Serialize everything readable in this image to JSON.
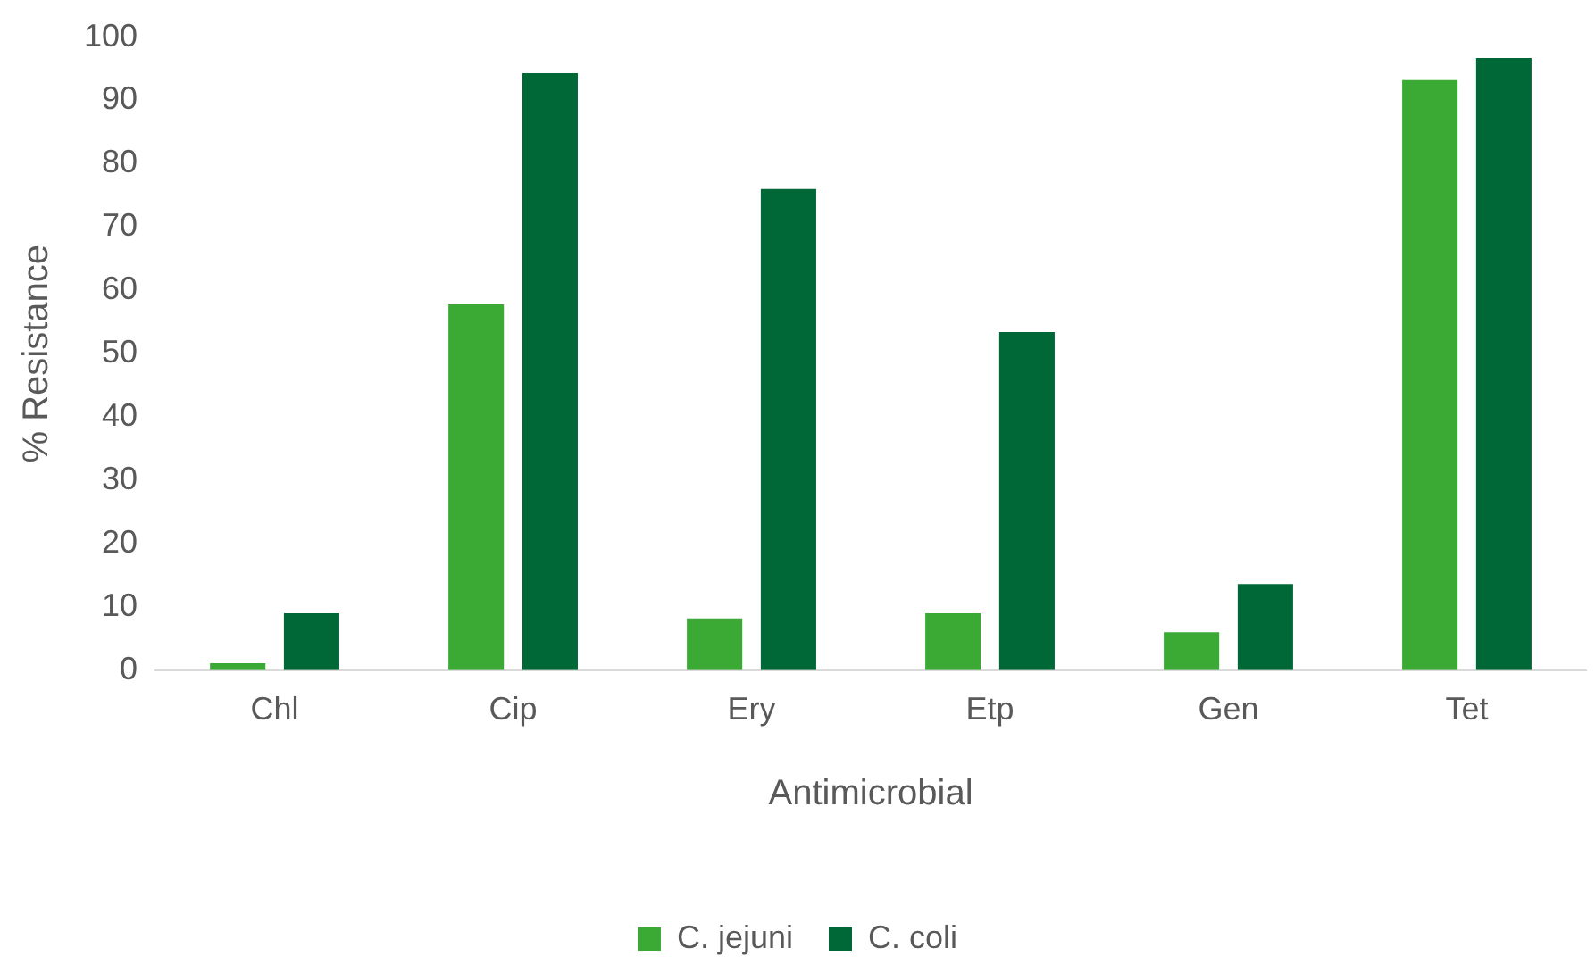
{
  "chart_data": {
    "type": "bar",
    "xlabel": "Antimicrobial",
    "ylabel": "% Resistance",
    "categories": [
      "Chl",
      "Cip",
      "Ery",
      "Etp",
      "Gen",
      "Tet"
    ],
    "series": [
      {
        "name": "C. jejuni",
        "color": "#3aaa35",
        "values": [
          1.1,
          57.8,
          8.2,
          9.0,
          6.0,
          93.2
        ]
      },
      {
        "name": "C. coli",
        "color": "#006837",
        "values": [
          9.0,
          94.3,
          76.0,
          53.4,
          13.6,
          96.7
        ]
      }
    ],
    "ylim": [
      0,
      100
    ],
    "yticks": [
      0,
      10,
      20,
      30,
      40,
      50,
      60,
      70,
      80,
      90,
      100
    ],
    "legend": "bottom"
  }
}
